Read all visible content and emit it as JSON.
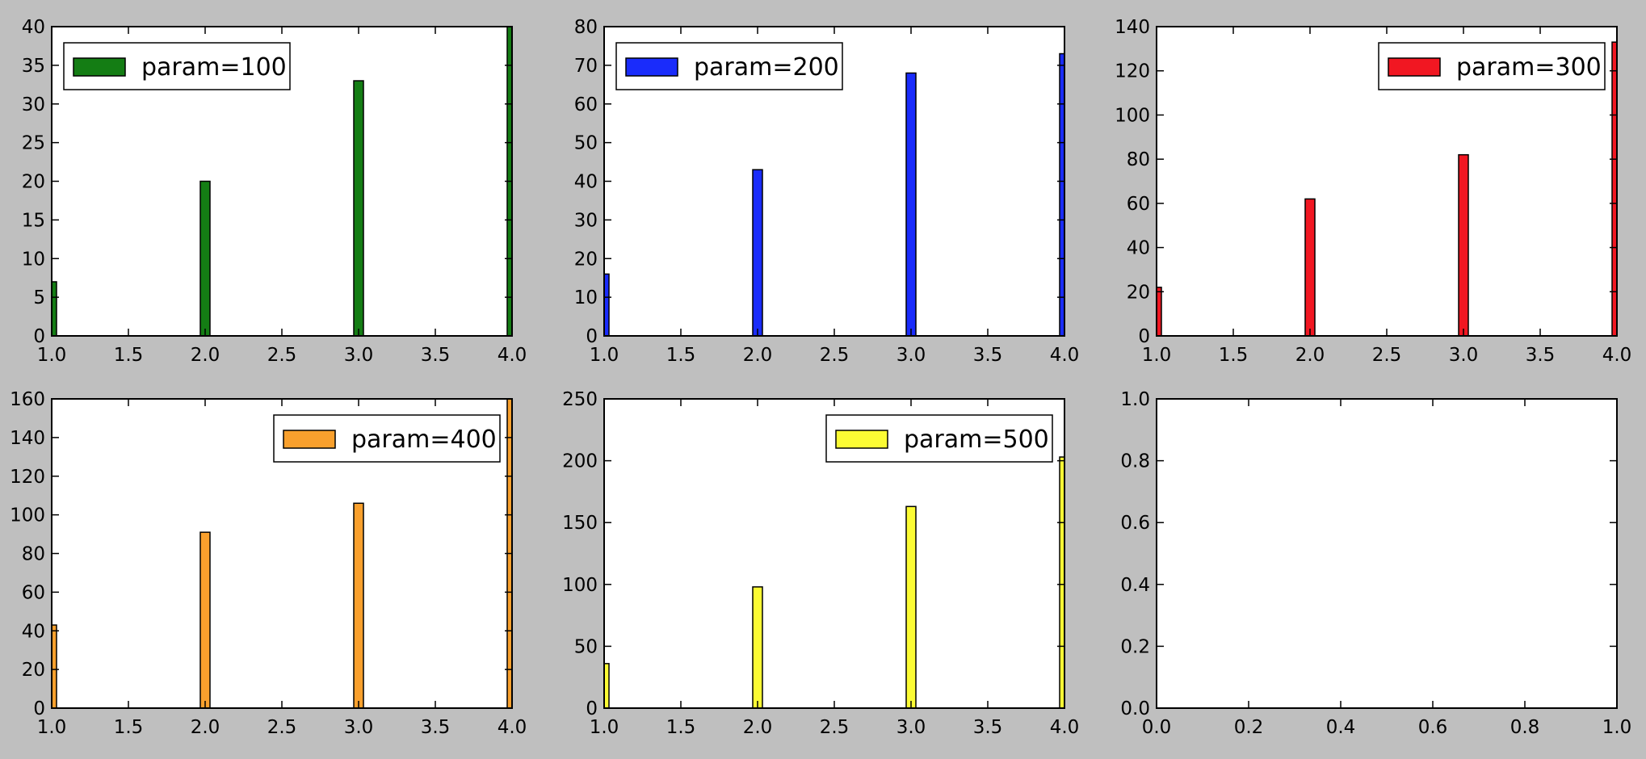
{
  "chart_data": [
    {
      "type": "bar",
      "x": [
        1.0,
        2.0,
        3.0,
        4.0
      ],
      "xlim": [
        1.0,
        4.0
      ],
      "xticks": [
        1.0,
        1.5,
        2.0,
        2.5,
        3.0,
        3.5,
        4.0
      ],
      "ylim": [
        0,
        40
      ],
      "yticks": [
        0,
        5,
        10,
        15,
        20,
        25,
        30,
        35,
        40
      ],
      "series": [
        {
          "name": "param=100",
          "values": [
            7,
            20,
            33,
            40
          ],
          "color": "#147d14"
        }
      ],
      "legend_position": "upper-left",
      "grid": false
    },
    {
      "type": "bar",
      "x": [
        1.0,
        2.0,
        3.0,
        4.0
      ],
      "xlim": [
        1.0,
        4.0
      ],
      "xticks": [
        1.0,
        1.5,
        2.0,
        2.5,
        3.0,
        3.5,
        4.0
      ],
      "ylim": [
        0,
        80
      ],
      "yticks": [
        0,
        10,
        20,
        30,
        40,
        50,
        60,
        70,
        80
      ],
      "series": [
        {
          "name": "param=200",
          "values": [
            16,
            43,
            68,
            73
          ],
          "color": "#1a2cfb"
        }
      ],
      "legend_position": "upper-left",
      "grid": false
    },
    {
      "type": "bar",
      "x": [
        1.0,
        2.0,
        3.0,
        4.0
      ],
      "xlim": [
        1.0,
        4.0
      ],
      "xticks": [
        1.0,
        1.5,
        2.0,
        2.5,
        3.0,
        3.5,
        4.0
      ],
      "ylim": [
        0,
        140
      ],
      "yticks": [
        0,
        20,
        40,
        60,
        80,
        100,
        120,
        140
      ],
      "series": [
        {
          "name": "param=300",
          "values": [
            22,
            62,
            82,
            133
          ],
          "color": "#f11722"
        }
      ],
      "legend_position": "upper-right",
      "grid": false
    },
    {
      "type": "bar",
      "x": [
        1.0,
        2.0,
        3.0,
        4.0
      ],
      "xlim": [
        1.0,
        4.0
      ],
      "xticks": [
        1.0,
        1.5,
        2.0,
        2.5,
        3.0,
        3.5,
        4.0
      ],
      "ylim": [
        0,
        160
      ],
      "yticks": [
        0,
        20,
        40,
        60,
        80,
        100,
        120,
        140,
        160
      ],
      "series": [
        {
          "name": "param=400",
          "values": [
            43,
            91,
            106,
            160
          ],
          "color": "#f9a02d"
        }
      ],
      "legend_position": "upper-right",
      "grid": false
    },
    {
      "type": "bar",
      "x": [
        1.0,
        2.0,
        3.0,
        4.0
      ],
      "xlim": [
        1.0,
        4.0
      ],
      "xticks": [
        1.0,
        1.5,
        2.0,
        2.5,
        3.0,
        3.5,
        4.0
      ],
      "ylim": [
        0,
        250
      ],
      "yticks": [
        0,
        50,
        100,
        150,
        200,
        250
      ],
      "series": [
        {
          "name": "param=500",
          "values": [
            36,
            98,
            163,
            203
          ],
          "color": "#fbfb34"
        }
      ],
      "legend_position": "upper-right",
      "grid": false
    },
    {
      "type": "bar",
      "x": [],
      "xlim": [
        0.0,
        1.0
      ],
      "xticks": [
        0.0,
        0.2,
        0.4,
        0.6,
        0.8,
        1.0
      ],
      "ylim": [
        0.0,
        1.0
      ],
      "yticks": [
        0.0,
        0.2,
        0.4,
        0.6,
        0.8,
        1.0
      ],
      "series": [],
      "grid": false
    }
  ]
}
